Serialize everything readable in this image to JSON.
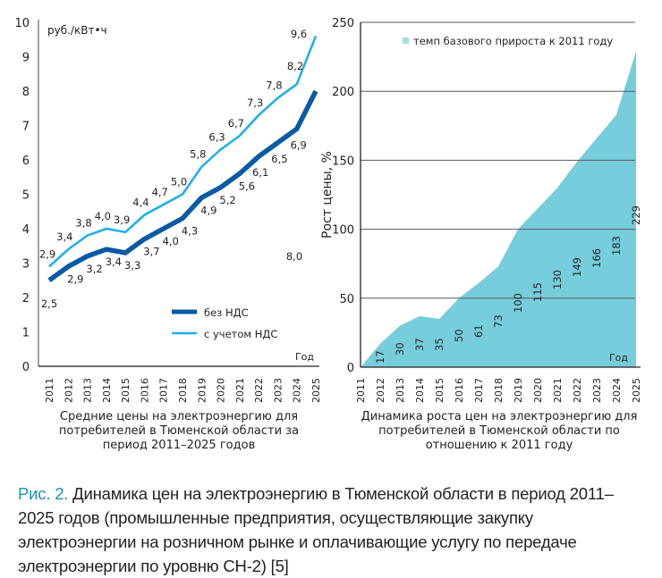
{
  "chart_data": [
    {
      "type": "line",
      "title": "Средние цены на электроэнергию для потребителей в Тюменской области за период 2011–2025 годов",
      "title_lines": [
        "Средние цены на электроэнергию для",
        "потребителей в Тюменской области за",
        "период 2011–2025 годов"
      ],
      "ylabel": "руб./кВт•ч",
      "xlabel": "Год",
      "ylim": [
        0,
        10
      ],
      "yticks": [
        "0",
        "1",
        "2",
        "3",
        "4",
        "5",
        "6",
        "7",
        "8",
        "9",
        "10"
      ],
      "x": [
        "2011",
        "2012",
        "2013",
        "2014",
        "2015",
        "2016",
        "2017",
        "2018",
        "2019",
        "2020",
        "2021",
        "2022",
        "2023",
        "2024",
        "2025"
      ],
      "legend_position": "bottom-right",
      "series": [
        {
          "name": "без НДС",
          "color": "#0a5aa6",
          "values": [
            2.5,
            2.9,
            3.2,
            3.4,
            3.3,
            3.7,
            4.0,
            4.3,
            4.9,
            5.2,
            5.6,
            6.1,
            6.5,
            6.9,
            8.0
          ],
          "labels": [
            "2,5",
            "2,9",
            "3,2",
            "3,4",
            "3,3",
            "3,7",
            "4,0",
            "4,3",
            "4,9",
            "5,2",
            "5,6",
            "6,1",
            "6,5",
            "6,9",
            "8,0"
          ]
        },
        {
          "name": "с учетом НДС",
          "color": "#1fb0ec",
          "values": [
            2.9,
            3.4,
            3.8,
            4.0,
            3.9,
            4.4,
            4.7,
            5.0,
            5.8,
            6.3,
            6.7,
            7.3,
            7.8,
            8.2,
            9.6
          ],
          "labels": [
            "2,9",
            "3,4",
            "3,8",
            "4,0",
            "3,9",
            "4,4",
            "4,7",
            "5,0",
            "5,8",
            "6,3",
            "6,7",
            "7,3",
            "7,8",
            "8,2",
            "9,6"
          ]
        }
      ]
    },
    {
      "type": "area",
      "title": "Динамика роста цен на электроэнергию для потребителей в Тюменской области по отношению к 2011 году",
      "title_lines": [
        "Динамика роста цен на электроэнергию для",
        "потребителей в Тюменской области по",
        "отношению к 2011 году"
      ],
      "ylabel": "Рост цены, %",
      "xlabel": "Год",
      "ylim": [
        0,
        250
      ],
      "yticks": [
        "0",
        "50",
        "100",
        "150",
        "200",
        "250"
      ],
      "grid": true,
      "x": [
        "2011",
        "2012",
        "2013",
        "2014",
        "2015",
        "2016",
        "2017",
        "2018",
        "2019",
        "2020",
        "2021",
        "2022",
        "2023",
        "2024",
        "2025"
      ],
      "legend_position": "top",
      "series": [
        {
          "name": "темп базового прироста к 2011 году",
          "color": "#76cddb",
          "values": [
            0,
            17,
            30,
            37,
            35,
            50,
            61,
            73,
            100,
            115,
            130,
            149,
            166,
            183,
            229
          ],
          "labels": [
            "",
            "17",
            "30",
            "37",
            "35",
            "50",
            "61",
            "73",
            "100",
            "115",
            "130",
            "149",
            "166",
            "183",
            "229"
          ]
        }
      ]
    }
  ],
  "caption": {
    "figure_label": "Рис. 2.",
    "text": " Динамика цен на электроэнергию в Тюменской области в период 2011–2025 годов (промышленные предприятия, осуществляющие закупку электроэнергии на розничном рынке и оплачивающие услугу по передаче электроэнергии по уровню СН-2) [5]"
  }
}
